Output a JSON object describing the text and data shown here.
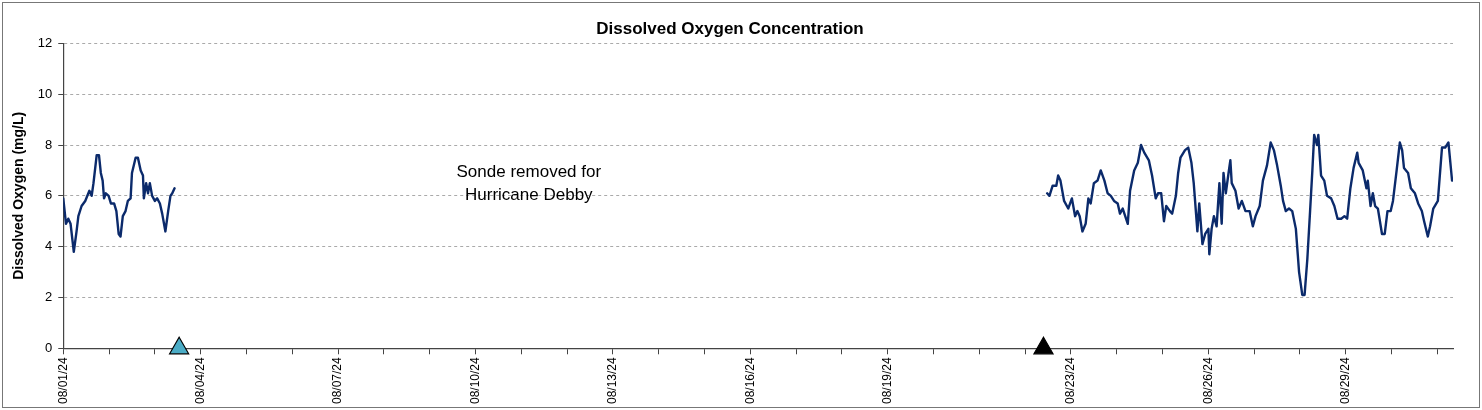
{
  "chart_data": {
    "type": "line",
    "title": "Dissolved Oxygen Concentration",
    "ylabel": "Dissolved Oxygen (mg/L)",
    "xlim": [
      "--08-01T00:00",
      "--08-31T08:10"
    ],
    "xticks": [
      {
        "value": "--08-01",
        "label": "08/01/24"
      },
      {
        "value": "--08-02",
        "label": null
      },
      {
        "value": "--08-03",
        "label": null
      },
      {
        "value": "--08-04",
        "label": "08/04/24"
      },
      {
        "value": "--08-05",
        "label": null
      },
      {
        "value": "--08-06",
        "label": null
      },
      {
        "value": "--08-07",
        "label": "08/07/24"
      },
      {
        "value": "--08-08",
        "label": null
      },
      {
        "value": "--08-09",
        "label": null
      },
      {
        "value": "--08-10",
        "label": "08/10/24"
      },
      {
        "value": "--08-11",
        "label": null
      },
      {
        "value": "--08-12",
        "label": null
      },
      {
        "value": "--08-13",
        "label": "08/13/24"
      },
      {
        "value": "--08-14",
        "label": null
      },
      {
        "value": "--08-15",
        "label": null
      },
      {
        "value": "--08-16",
        "label": "08/16/24"
      },
      {
        "value": "--08-17",
        "label": null
      },
      {
        "value": "--08-18",
        "label": null
      },
      {
        "value": "--08-19",
        "label": "08/19/24"
      },
      {
        "value": "--08-20",
        "label": null
      },
      {
        "value": "--08-21",
        "label": null
      },
      {
        "value": "--08-22",
        "label": null
      },
      {
        "value": "--08-23",
        "label": "08/23/24"
      },
      {
        "value": "--08-24",
        "label": null
      },
      {
        "value": "--08-25",
        "label": null
      },
      {
        "value": "--08-26",
        "label": "08/26/24"
      },
      {
        "value": "--08-27",
        "label": null
      },
      {
        "value": "--08-28",
        "label": null
      },
      {
        "value": "--08-29",
        "label": "08/29/24"
      },
      {
        "value": "--08-30",
        "label": null
      },
      {
        "value": "--08-31",
        "label": null
      }
    ],
    "ylim": [
      0,
      12
    ],
    "yticks": [
      0,
      2,
      4,
      6,
      8,
      10,
      12
    ],
    "grid": "y",
    "legend": false,
    "line_style": "solid",
    "marker": "none",
    "annotations": [
      "Sonde removed for\nHurricane Debby"
    ],
    "series": [
      {
        "type": "line",
        "color": "#0b2a6b",
        "x": [
          "--08-01T00:00",
          "--08-01T01:26",
          "--08-01T02:38",
          "--08-01T03:50",
          "--08-01T05:31",
          "--08-01T06:58",
          "--08-01T07:55",
          "--08-01T09:36",
          "--08-01T11:31",
          "--08-01T13:41",
          "--08-01T14:53",
          "--08-01T15:50",
          "--08-01T17:31",
          "--08-01T18:43",
          "--08-01T19:41",
          "--08-01T20:38",
          "--08-01T21:22",
          "--08-01T22:19",
          "--08-01T23:46",
          "--08-02T00:58",
          "--08-02T02:38",
          "--08-02T03:50",
          "--08-02T05:02",
          "--08-02T06:00",
          "--08-02T07:12",
          "--08-02T08:38",
          "--08-02T09:50",
          "--08-02T11:17",
          "--08-02T12:00",
          "--08-02T13:55",
          "--08-02T15:07",
          "--08-02T16:34",
          "--08-02T17:46",
          "--08-02T18:14",
          "--08-02T19:26",
          "--08-02T20:24",
          "--08-02T21:22",
          "--08-02T22:34",
          "--08-03T00:00",
          "--08-03T01:12",
          "--08-03T02:38",
          "--08-03T03:50",
          "--08-03T05:31",
          "--08-03T06:58",
          "--08-03T08:10",
          "--08-03T09:07",
          "--08-03T10:19",
          "--08-12T00:00",
          "--08-22T11:31",
          "--08-22T12:43",
          "--08-22T14:24",
          "--08-22T16:19",
          "--08-22T17:17",
          "--08-22T18:29",
          "--08-22T20:24",
          "--08-22T22:34",
          "--08-23T00:29",
          "--08-23T02:10",
          "--08-23T03:22",
          "--08-23T04:34",
          "--08-23T06:00",
          "--08-23T07:41",
          "--08-23T09:07",
          "--08-23T10:19",
          "--08-23T12:00",
          "--08-23T13:55",
          "--08-23T15:36",
          "--08-23T17:31",
          "--08-23T19:12",
          "--08-23T20:53",
          "--08-23T22:34",
          "--08-24T00:29",
          "--08-24T01:41",
          "--08-24T03:07",
          "--08-24T05:46",
          "--08-24T06:58",
          "--08-24T09:07",
          "--08-24T11:02",
          "--08-24T12:43",
          "--08-24T14:24",
          "--08-24T16:48",
          "--08-24T18:29",
          "--08-24T20:24",
          "--08-24T21:36",
          "--08-24T23:17",
          "--08-25T00:43",
          "--08-25T01:55",
          "--08-25T03:50",
          "--08-25T05:02",
          "--08-25T06:58",
          "--08-25T08:10",
          "--08-25T09:22",
          "--08-25T11:46",
          "--08-25T13:26",
          "--08-25T15:07",
          "--08-25T16:19",
          "--08-25T18:14",
          "--08-25T19:12",
          "--08-25T20:53",
          "--08-25T22:19",
          "--08-26T00:00",
          "--08-26T00:29",
          "--08-26T01:41",
          "--08-26T02:53",
          "--08-26T04:19",
          "--08-26T05:46",
          "--08-26T06:58",
          "--08-26T07:55",
          "--08-26T09:07",
          "--08-26T10:34",
          "--08-26T11:31",
          "--08-26T12:14",
          "--08-26T14:10",
          "--08-26T15:50",
          "--08-26T17:31",
          "--08-26T19:26",
          "--08-26T21:36",
          "--08-26T23:17",
          "--08-27T00:43",
          "--08-27T02:53",
          "--08-27T04:34",
          "--08-27T06:43",
          "--08-27T08:38",
          "--08-27T10:19",
          "--08-27T12:00",
          "--08-27T13:55",
          "--08-27T15:07",
          "--08-27T16:34",
          "--08-27T18:14",
          "--08-27T19:55",
          "--08-27T21:50",
          "--08-27T23:31",
          "--08-28T01:12",
          "--08-28T02:24",
          "--08-28T03:50",
          "--08-28T05:17",
          "--08-28T06:29",
          "--08-28T07:26",
          "--08-28T08:53",
          "--08-28T09:36",
          "--08-28T11:02",
          "--08-28T12:43",
          "--08-28T14:10",
          "--08-28T16:19",
          "--08-28T18:00",
          "--08-28T19:41",
          "--08-28T21:36",
          "--08-28T23:17",
          "--08-29T00:43",
          "--08-29T02:24",
          "--08-29T04:05",
          "--08-29T06:00",
          "--08-29T06:43",
          "--08-29T08:53",
          "--08-29T10:48",
          "--08-29T11:31",
          "--08-29T12:58",
          "--08-29T14:10",
          "--08-29T15:22",
          "--08-29T16:48",
          "--08-29T18:58",
          "--08-29T20:24",
          "--08-29T21:50",
          "--08-29T23:31",
          "--08-30T00:43",
          "--08-30T02:38",
          "--08-30T04:19",
          "--08-30T05:31",
          "--08-30T06:29",
          "--08-30T08:38",
          "--08-30T10:05",
          "--08-30T12:14",
          "--08-30T13:55",
          "--08-30T15:50",
          "--08-30T17:02",
          "--08-30T18:58",
          "--08-30T20:10",
          "--08-30T21:50",
          "--08-31T00:14",
          "--08-31T02:24",
          "--08-31T04:05",
          "--08-31T05:46",
          "--08-31T07:41"
        ],
        "values": [
          5.9,
          4.9,
          5.1,
          4.9,
          3.8,
          4.6,
          5.2,
          5.6,
          5.8,
          6.2,
          6.0,
          6.5,
          7.6,
          7.6,
          6.9,
          6.6,
          5.9,
          6.1,
          6.0,
          5.7,
          5.7,
          5.4,
          4.5,
          4.4,
          5.2,
          5.4,
          5.8,
          5.9,
          6.9,
          7.5,
          7.5,
          7.0,
          6.8,
          5.9,
          6.5,
          6.1,
          6.5,
          6.0,
          5.8,
          5.9,
          5.7,
          5.3,
          4.6,
          5.4,
          6.0,
          6.1,
          6.3,
          null,
          6.1,
          6.0,
          6.4,
          6.4,
          6.8,
          6.6,
          5.8,
          5.5,
          5.9,
          5.2,
          5.4,
          5.2,
          4.6,
          4.9,
          5.9,
          5.7,
          6.5,
          6.6,
          7.0,
          6.6,
          6.1,
          6.0,
          5.8,
          5.7,
          5.3,
          5.5,
          4.9,
          6.2,
          7.0,
          7.3,
          8.0,
          7.7,
          7.4,
          6.8,
          5.9,
          6.1,
          6.1,
          5.0,
          5.6,
          5.4,
          5.3,
          6.0,
          6.9,
          7.5,
          7.8,
          7.9,
          7.3,
          6.5,
          4.6,
          5.7,
          4.1,
          4.5,
          4.7,
          3.7,
          4.7,
          5.2,
          4.8,
          6.5,
          4.9,
          6.9,
          6.1,
          6.9,
          7.4,
          6.5,
          6.2,
          5.5,
          5.8,
          5.4,
          5.4,
          4.8,
          5.2,
          5.6,
          6.6,
          7.2,
          8.1,
          7.8,
          7.2,
          6.4,
          5.8,
          5.4,
          5.5,
          5.4,
          4.7,
          3.0,
          2.1,
          2.1,
          3.5,
          5.4,
          7.0,
          8.4,
          8.0,
          8.4,
          6.8,
          6.6,
          6.0,
          5.9,
          5.6,
          5.1,
          5.1,
          5.2,
          5.1,
          6.3,
          7.1,
          7.7,
          7.3,
          7.0,
          6.3,
          6.6,
          5.6,
          6.1,
          5.6,
          5.5,
          4.5,
          4.5,
          5.4,
          5.4,
          5.8,
          7.0,
          8.1,
          7.8,
          7.1,
          6.9,
          6.3,
          6.1,
          5.7,
          5.4,
          5.0,
          4.4,
          4.8,
          5.5,
          5.8,
          7.9,
          7.9,
          8.1,
          6.6
        ]
      },
      {
        "type": "scatter",
        "color": "#4bacc6",
        "marker": "triangle",
        "x": [
          "--08-03T12:43"
        ],
        "values": [
          0
        ]
      },
      {
        "type": "scatter",
        "color": "#000000",
        "marker": "triangle",
        "x": [
          "--08-22T09:36"
        ],
        "values": [
          0
        ]
      }
    ]
  }
}
